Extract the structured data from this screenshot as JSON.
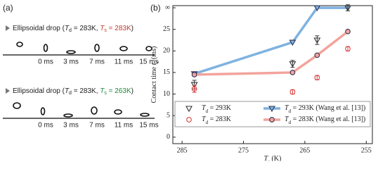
{
  "panel_a": {
    "label": "(a)",
    "rows": [
      {
        "caption": [
          "Ellipsoidal drop (",
          "T",
          "d",
          " = 283K, ",
          "T",
          "s",
          " = 283K",
          ")"
        ],
        "highlight_color": "#c0392b",
        "times": [
          "0 ms",
          "3 ms",
          "7 ms",
          "11 ms",
          "15 ms"
        ]
      },
      {
        "caption": [
          "Ellipsoidal drop (",
          "T",
          "d",
          " = 283K, ",
          "T",
          "s",
          " = 263K",
          ")"
        ],
        "highlight_color": "#1e8a3a",
        "times": [
          "0 ms",
          "3 ms",
          "7 ms",
          "11 ms",
          "15 ms"
        ]
      }
    ]
  },
  "chart_data": {
    "type": "scatter_line",
    "label": "(b)",
    "x_label": [
      "T",
      "s",
      " (K)"
    ],
    "y_label": [
      "Contact time  ",
      "t",
      "c",
      " (ms)"
    ],
    "x": [
      283,
      267,
      263,
      258
    ],
    "xlim": [
      286.5,
      254
    ],
    "xticks": [
      285,
      275,
      265,
      255
    ],
    "ylim": [
      -1.5,
      30.5
    ],
    "yticks": [
      0,
      5,
      10,
      15,
      20,
      25,
      {
        "value": 30,
        "label": "∞"
      }
    ],
    "legend": "lower center",
    "series": [
      {
        "name": [
          "T",
          "d",
          " = 293K"
        ],
        "type": "scatter",
        "marker": "triangle",
        "color": "#333333",
        "values": [
          12.2,
          17,
          22.5,
          30
        ],
        "errors": [
          1,
          0.8,
          1,
          0.7
        ]
      },
      {
        "name": [
          "T",
          "d",
          " = 283K"
        ],
        "type": "scatter",
        "marker": "circle",
        "color": "#d94040",
        "values": [
          11.2,
          10.5,
          13.8,
          20.5
        ],
        "errors": [
          0.8,
          0.5,
          0.5,
          0.5
        ]
      },
      {
        "name": [
          "T",
          "d",
          " = 293K (Wang et al. [13])"
        ],
        "type": "line",
        "marker": "triangle",
        "color": "#7fb2e0",
        "values": [
          14.7,
          22,
          30,
          30
        ]
      },
      {
        "name": [
          "T",
          "d",
          " = 283K (Wang et al. [13])"
        ],
        "type": "line",
        "marker": "circle",
        "color": "#f2a49c",
        "values": [
          14.5,
          15,
          19,
          24.5
        ]
      }
    ]
  }
}
